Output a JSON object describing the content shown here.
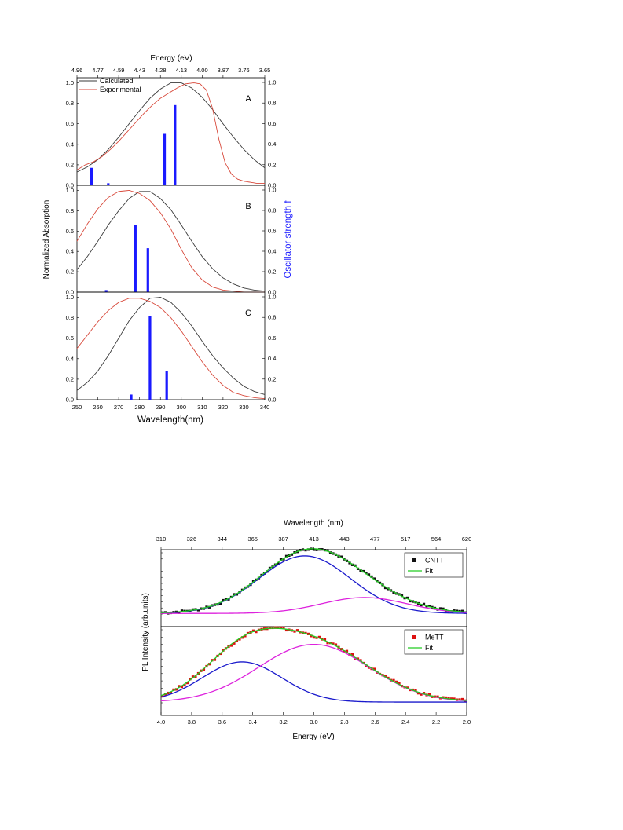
{
  "chart_data": [
    {
      "type": "line",
      "title": "",
      "xlabel": "Wavelength(nm)",
      "top_xlabel": "Energy (eV)",
      "ylabel": "Normalized Absorption",
      "y2label": "Oscillator strength f",
      "xlim": [
        250,
        340
      ],
      "x_ticks": [
        "250",
        "260",
        "270",
        "280",
        "290",
        "300",
        "310",
        "320",
        "330",
        "340"
      ],
      "top_x_ticks": [
        "4.96",
        "4.77",
        "4.59",
        "4.43",
        "4.28",
        "4.13",
        "4.00",
        "3.87",
        "3.76",
        "3.65"
      ],
      "ylim": [
        0,
        1.05
      ],
      "y2lim": [
        0,
        1.0
      ],
      "y_ticks": [
        "0.0",
        "0.2",
        "0.4",
        "0.6",
        "0.8",
        "1.0"
      ],
      "y2_ticks": [
        "0.0",
        "0.2",
        "0.4",
        "0.6",
        "0.8",
        "1.0"
      ],
      "grid": false,
      "legend": {
        "position": "top-left",
        "entries": [
          "Calculated",
          "Experimental"
        ]
      },
      "colors": {
        "calculated": "#3a3a3a",
        "experimental": "#d84a3c",
        "sticks": "#1a1aff"
      },
      "panels": [
        {
          "label": "A",
          "series": [
            {
              "name": "Calculated",
              "x": [
                250,
                255,
                260,
                265,
                270,
                275,
                280,
                285,
                290,
                295,
                300,
                305,
                310,
                315,
                320,
                325,
                330,
                335,
                340
              ],
              "y": [
                0.13,
                0.18,
                0.25,
                0.35,
                0.47,
                0.6,
                0.73,
                0.85,
                0.94,
                1.0,
                1.0,
                0.95,
                0.86,
                0.74,
                0.6,
                0.47,
                0.35,
                0.25,
                0.17
              ]
            },
            {
              "name": "Experimental",
              "x": [
                250,
                254,
                258,
                262,
                266,
                270,
                274,
                278,
                282,
                286,
                290,
                294,
                298,
                302,
                306,
                309,
                312,
                315,
                318,
                321,
                324,
                327,
                330,
                333,
                336,
                340
              ],
              "y": [
                0.15,
                0.2,
                0.23,
                0.28,
                0.35,
                0.43,
                0.52,
                0.61,
                0.7,
                0.78,
                0.85,
                0.9,
                0.95,
                0.99,
                1.0,
                0.99,
                0.93,
                0.75,
                0.45,
                0.22,
                0.11,
                0.06,
                0.04,
                0.03,
                0.02,
                0.02
              ]
            }
          ],
          "sticks": {
            "x": [
              257,
              265,
              292,
              297
            ],
            "f": [
              0.17,
              0.02,
              0.5,
              0.78
            ]
          }
        },
        {
          "label": "B",
          "series": [
            {
              "name": "Calculated",
              "x": [
                250,
                255,
                260,
                265,
                270,
                275,
                280,
                285,
                290,
                295,
                300,
                305,
                310,
                315,
                320,
                325,
                330,
                335,
                340
              ],
              "y": [
                0.22,
                0.35,
                0.5,
                0.66,
                0.8,
                0.92,
                0.99,
                0.99,
                0.92,
                0.81,
                0.66,
                0.5,
                0.35,
                0.23,
                0.14,
                0.08,
                0.04,
                0.02,
                0.01
              ]
            },
            {
              "name": "Experimental",
              "x": [
                250,
                255,
                260,
                265,
                270,
                275,
                280,
                285,
                290,
                295,
                300,
                305,
                310,
                315,
                320,
                325,
                330,
                335,
                340
              ],
              "y": [
                0.5,
                0.67,
                0.82,
                0.93,
                0.99,
                1.0,
                0.97,
                0.9,
                0.78,
                0.62,
                0.42,
                0.24,
                0.12,
                0.05,
                0.02,
                0.01,
                0.0,
                0.0,
                0.0
              ]
            }
          ],
          "sticks": {
            "x": [
              264,
              278,
              284
            ],
            "f": [
              0.02,
              0.66,
              0.43
            ]
          }
        },
        {
          "label": "C",
          "series": [
            {
              "name": "Calculated",
              "x": [
                250,
                255,
                260,
                265,
                270,
                275,
                280,
                285,
                290,
                295,
                300,
                305,
                310,
                315,
                320,
                325,
                330,
                335,
                340
              ],
              "y": [
                0.09,
                0.17,
                0.28,
                0.43,
                0.6,
                0.77,
                0.9,
                0.99,
                1.0,
                0.95,
                0.85,
                0.72,
                0.57,
                0.43,
                0.31,
                0.21,
                0.13,
                0.08,
                0.05
              ]
            },
            {
              "name": "Experimental",
              "x": [
                250,
                255,
                260,
                265,
                270,
                275,
                280,
                285,
                290,
                295,
                300,
                305,
                310,
                315,
                320,
                325,
                330,
                335,
                340
              ],
              "y": [
                0.5,
                0.63,
                0.76,
                0.87,
                0.95,
                0.99,
                0.99,
                0.96,
                0.9,
                0.8,
                0.67,
                0.52,
                0.37,
                0.24,
                0.14,
                0.07,
                0.04,
                0.02,
                0.01
              ]
            }
          ],
          "sticks": {
            "x": [
              276,
              285,
              293
            ],
            "f": [
              0.05,
              0.81,
              0.28
            ]
          }
        }
      ]
    },
    {
      "type": "scatter",
      "title": "",
      "xlabel": "Energy (eV)",
      "top_xlabel": "Wavelength (nm)",
      "ylabel": "PL Intensity (arb.units)",
      "xlim": [
        4.0,
        2.0
      ],
      "x_ticks": [
        "4.0",
        "3.8",
        "3.6",
        "3.4",
        "3.2",
        "3.0",
        "2.8",
        "2.6",
        "2.4",
        "2.2",
        "2.0"
      ],
      "top_x_ticks": [
        "310",
        "326",
        "344",
        "365",
        "387",
        "413",
        "443",
        "477",
        "517",
        "564",
        "620"
      ],
      "grid": false,
      "legend": {
        "position": "top-right"
      },
      "colors": {
        "fit": "#22cc22",
        "peak1": "#1a1acc",
        "peak2": "#dd22dd",
        "cntt": "#111111",
        "mett": "#dd1111"
      },
      "panels": [
        {
          "label": "CNTT",
          "legend": [
            "CNTT",
            "Fit"
          ],
          "marker_color": "#111111",
          "peak1": {
            "center": 3.06,
            "width": 0.3,
            "amp": 0.94
          },
          "peak2": {
            "center": 2.67,
            "width": 0.28,
            "amp": 0.26
          }
        },
        {
          "label": "MeTT",
          "legend": [
            "MeTT",
            "Fit"
          ],
          "marker_color": "#dd1111",
          "peak1": {
            "center": 3.47,
            "width": 0.26,
            "amp": 0.55
          },
          "peak2": {
            "center": 3.0,
            "width": 0.36,
            "amp": 0.79
          }
        }
      ]
    }
  ]
}
